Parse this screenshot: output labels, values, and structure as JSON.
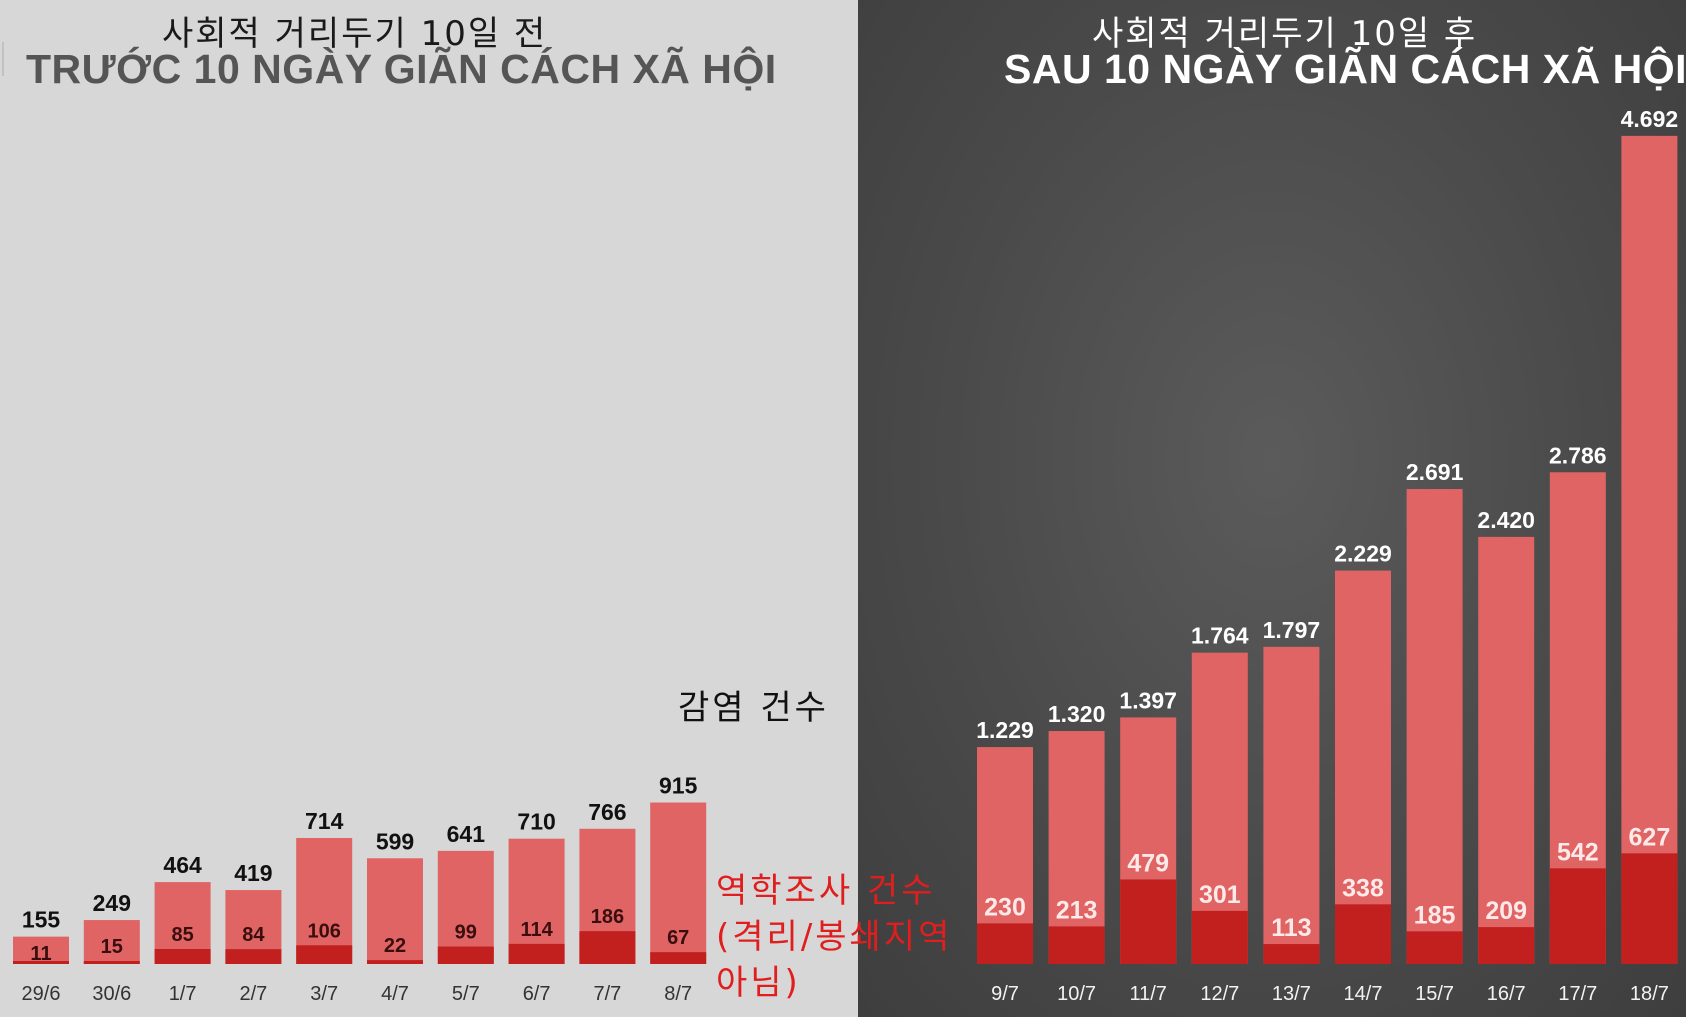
{
  "left": {
    "title_ko": "사회적 거리두기 10일 전",
    "title_vn": "TRƯỚC 10 NGÀY GIÃN CÁCH XÃ HỘI"
  },
  "right": {
    "title_ko": "사회적 거리두기 10일 후",
    "title_vn": "SAU 10 NGÀY GIÃN CÁCH XÃ HỘI"
  },
  "notes": {
    "cases": "감염 건수",
    "epi": "역학조사 건수\n(격리/봉쇄지역\n아님)"
  },
  "colors": {
    "left_bg": "#d7d7d7",
    "right_bg": "#4a4a4a",
    "bar_total": "#e06464",
    "bar_epi": "#c21f1f",
    "note_red": "#e01e1e"
  },
  "chart_data": [
    {
      "type": "bar",
      "title": "TRƯỚC 10 NGÀY GIÃN CÁCH XÃ HỘI",
      "categories": [
        "29/6",
        "30/6",
        "1/7",
        "2/7",
        "3/7",
        "4/7",
        "5/7",
        "6/7",
        "7/7",
        "8/7"
      ],
      "series": [
        {
          "name": "감염 건수",
          "values": [
            155,
            249,
            464,
            419,
            714,
            599,
            641,
            710,
            766,
            915
          ]
        },
        {
          "name": "역학조사 건수",
          "values": [
            11,
            15,
            85,
            84,
            106,
            22,
            99,
            114,
            186,
            67
          ]
        }
      ],
      "value_labels": {
        "total": [
          "155",
          "249",
          "464",
          "419",
          "714",
          "599",
          "641",
          "710",
          "766",
          "915"
        ],
        "epi": [
          "11",
          "15",
          "85",
          "84",
          "106",
          "22",
          "99",
          "114",
          "186",
          "67"
        ]
      },
      "xlabel": "",
      "ylabel": "",
      "grid": false,
      "legend": "none"
    },
    {
      "type": "bar",
      "title": "SAU 10 NGÀY GIÃN CÁCH XÃ HỘI",
      "categories": [
        "9/7",
        "10/7",
        "11/7",
        "12/7",
        "13/7",
        "14/7",
        "15/7",
        "16/7",
        "17/7",
        "18/7"
      ],
      "series": [
        {
          "name": "감염 건수",
          "values": [
            1229,
            1320,
            1397,
            1764,
            1797,
            2229,
            2691,
            2420,
            2786,
            4692
          ]
        },
        {
          "name": "역학조사 건수",
          "values": [
            230,
            213,
            479,
            301,
            113,
            338,
            185,
            209,
            542,
            627
          ]
        }
      ],
      "value_labels": {
        "total": [
          "1.229",
          "1.320",
          "1.397",
          "1.764",
          "1.797",
          "2.229",
          "2.691",
          "2.420",
          "2.786",
          "4.692"
        ],
        "epi": [
          "230",
          "213",
          "479",
          "301",
          "113",
          "338",
          "185",
          "209",
          "542",
          "627"
        ]
      },
      "xlabel": "",
      "ylabel": "",
      "grid": false,
      "legend": "none"
    }
  ]
}
